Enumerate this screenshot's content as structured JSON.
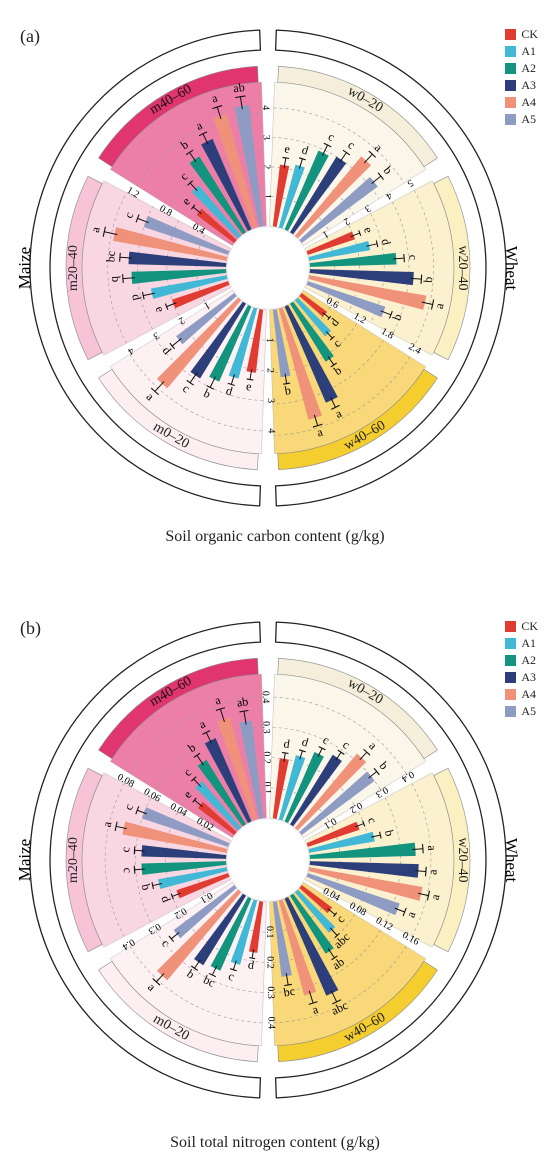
{
  "legend": [
    {
      "name": "CK",
      "color": "#e03c31"
    },
    {
      "name": "A1",
      "color": "#41b8d5"
    },
    {
      "name": "A2",
      "color": "#13947f"
    },
    {
      "name": "A3",
      "color": "#2d3f7a"
    },
    {
      "name": "A4",
      "color": "#f0917a"
    },
    {
      "name": "A5",
      "color": "#8e9cc4"
    }
  ],
  "chart_data": [
    {
      "type": "bar",
      "subtype": "circular-grouped-bar",
      "panel_label": "(a)",
      "caption": "Soil organic carbon content (g/kg)",
      "outer_group_labels": [
        "Wheat",
        "Maize"
      ],
      "series_names": [
        "CK",
        "A1",
        "A2",
        "A3",
        "A4",
        "A5"
      ],
      "sectors": [
        {
          "label": "w0–20",
          "crop": "Wheat",
          "ticks": [
            "1",
            "2",
            "3",
            "4"
          ],
          "max": 4.6,
          "values": [
            2.1,
            2.2,
            2.9,
            3.0,
            3.5,
            3.2
          ],
          "errors": [
            0.15,
            0.15,
            0.2,
            0.2,
            0.2,
            0.2
          ],
          "letters": [
            "e",
            "d",
            "c",
            "c",
            "a",
            "b"
          ]
        },
        {
          "label": "w20–40",
          "crop": "Wheat",
          "ticks": [
            "1",
            "2",
            "3",
            "4",
            "5"
          ],
          "max": 5.5,
          "values": [
            2.0,
            2.5,
            3.5,
            4.2,
            4.8,
            3.3
          ],
          "errors": [
            0.15,
            0.2,
            0.2,
            0.2,
            0.2,
            0.2
          ],
          "letters": [
            "e",
            "d",
            "c",
            "b",
            "a",
            "b"
          ]
        },
        {
          "label": "w40–60",
          "crop": "Wheat",
          "ticks": [
            "0.6",
            "1.2",
            "1.8",
            "2.4"
          ],
          "max": 2.6,
          "values": [
            0.6,
            0.9,
            1.3,
            2.0,
            2.2,
            1.3
          ],
          "errors": [
            0.05,
            0.06,
            0.08,
            0.1,
            0.1,
            0.08
          ],
          "letters": [
            "d",
            "c",
            "b",
            "a",
            "a",
            "b"
          ]
        },
        {
          "label": "m0–20",
          "crop": "Maize",
          "ticks": [
            "1",
            "2",
            "3",
            "4"
          ],
          "max": 4.5,
          "values": [
            2.1,
            2.4,
            2.7,
            2.9,
            3.8,
            2.4
          ],
          "errors": [
            0.15,
            0.15,
            0.2,
            0.2,
            0.25,
            0.2
          ],
          "letters": [
            "e",
            "d",
            "b",
            "c",
            "a",
            "d"
          ]
        },
        {
          "label": "m20–40",
          "crop": "Maize",
          "ticks": [
            "1",
            "2",
            "3",
            "4"
          ],
          "max": 4.6,
          "values": [
            2.0,
            2.6,
            3.2,
            3.3,
            3.9,
            3.0
          ],
          "errors": [
            0.15,
            0.2,
            0.2,
            0.2,
            0.25,
            0.2
          ],
          "letters": [
            "e",
            "d",
            "b",
            "bc",
            "a",
            "c"
          ]
        },
        {
          "label": "m40–60",
          "crop": "Maize",
          "ticks": [
            "0.4",
            "0.8",
            "1.2"
          ],
          "max": 1.45,
          "values": [
            0.5,
            0.7,
            0.95,
            1.05,
            1.25,
            1.3
          ],
          "errors": [
            0.05,
            0.05,
            0.06,
            0.06,
            0.07,
            0.07
          ],
          "letters": [
            "e",
            "c",
            "b",
            "a",
            "a",
            "ab"
          ]
        }
      ]
    },
    {
      "type": "bar",
      "subtype": "circular-grouped-bar",
      "panel_label": "(b)",
      "caption": "Soil total nitrogen content (g/kg)",
      "outer_group_labels": [
        "Wheat",
        "Maize"
      ],
      "series_names": [
        "CK",
        "A1",
        "A2",
        "A3",
        "A4",
        "A5"
      ],
      "sectors": [
        {
          "label": "w0–20",
          "crop": "Wheat",
          "ticks": [
            "0.1",
            "0.2",
            "0.3",
            "0.4"
          ],
          "max": 0.45,
          "values": [
            0.2,
            0.22,
            0.25,
            0.27,
            0.32,
            0.3
          ],
          "errors": [
            0.01,
            0.01,
            0.012,
            0.012,
            0.015,
            0.015
          ],
          "letters": [
            "d",
            "d",
            "c",
            "c",
            "a",
            "b"
          ]
        },
        {
          "label": "w20–40",
          "crop": "Wheat",
          "ticks": [
            "0.1",
            "0.2",
            "0.3",
            "0.4"
          ],
          "max": 0.45,
          "values": [
            0.18,
            0.22,
            0.35,
            0.36,
            0.38,
            0.32
          ],
          "errors": [
            0.01,
            0.012,
            0.015,
            0.015,
            0.015,
            0.015
          ],
          "letters": [
            "c",
            "b",
            "a",
            "a",
            "a",
            "a"
          ]
        },
        {
          "label": "w40–60",
          "crop": "Wheat",
          "ticks": [
            "0.04",
            "0.08",
            "0.12",
            "0.16"
          ],
          "max": 0.18,
          "values": [
            0.05,
            0.07,
            0.09,
            0.14,
            0.13,
            0.1
          ],
          "errors": [
            0.005,
            0.006,
            0.007,
            0.009,
            0.009,
            0.008
          ],
          "letters": [
            "c",
            "abc",
            "ab",
            "abc",
            "a",
            "bc"
          ]
        },
        {
          "label": "m0–20",
          "crop": "Maize",
          "ticks": [
            "0.1",
            "0.2",
            "0.3",
            "0.4"
          ],
          "max": 0.45,
          "values": [
            0.17,
            0.22,
            0.26,
            0.27,
            0.38,
            0.25
          ],
          "errors": [
            0.01,
            0.012,
            0.014,
            0.014,
            0.018,
            0.014
          ],
          "letters": [
            "d",
            "c",
            "bc",
            "b",
            "a",
            "c"
          ]
        },
        {
          "label": "m20–40",
          "crop": "Maize",
          "ticks": [
            "0.1",
            "0.2",
            "0.3",
            "0.4"
          ],
          "max": 0.45,
          "values": [
            0.18,
            0.23,
            0.28,
            0.28,
            0.35,
            0.3
          ],
          "errors": [
            0.01,
            0.012,
            0.014,
            0.014,
            0.016,
            0.014
          ],
          "letters": [
            "d",
            "b",
            "c",
            "c",
            "a",
            "c"
          ]
        },
        {
          "label": "m40–60",
          "crop": "Maize",
          "ticks": [
            "0.02",
            "0.04",
            "0.06",
            "0.08"
          ],
          "max": 0.09,
          "values": [
            0.03,
            0.04,
            0.05,
            0.06,
            0.07,
            0.065
          ],
          "errors": [
            0.003,
            0.003,
            0.004,
            0.004,
            0.005,
            0.005
          ],
          "letters": [
            "e",
            "c",
            "b",
            "a",
            "a",
            "ab"
          ]
        }
      ]
    }
  ]
}
